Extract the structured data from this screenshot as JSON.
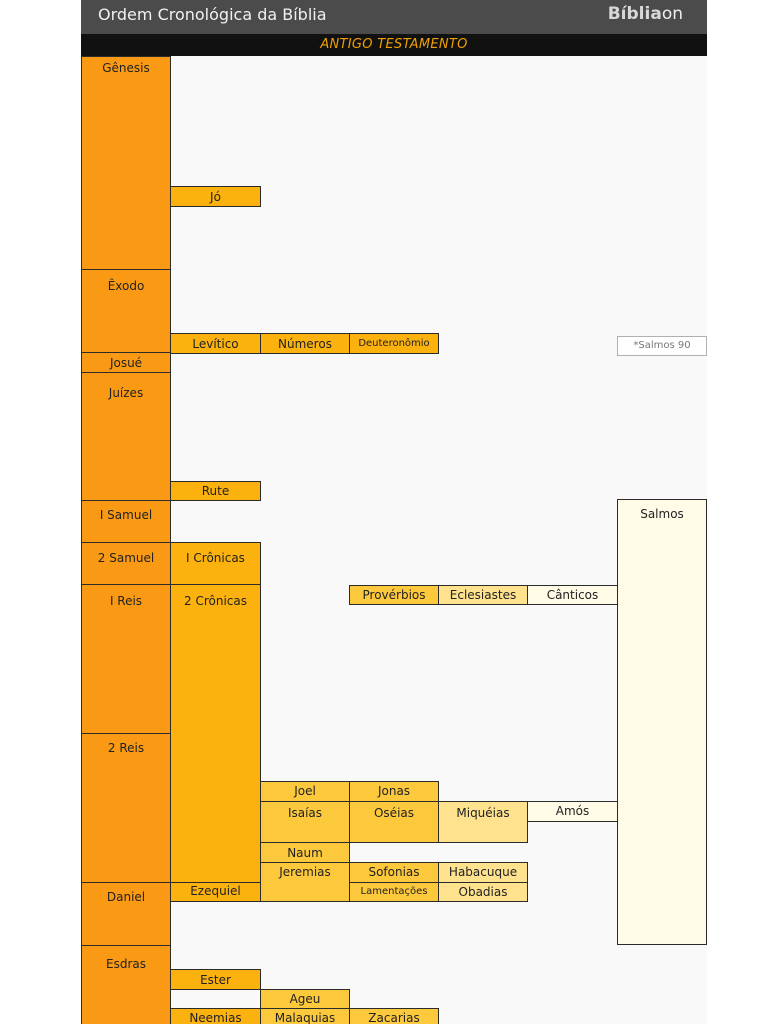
{
  "header": {
    "title": "Ordem Cronológica da Bíblia",
    "brand_strong": "Bíblia",
    "brand_light": "on"
  },
  "banner": {
    "label": "ANTIGO TESTAMENTO"
  },
  "colors": {
    "col1": "#fa9a14",
    "col2": "#fcb20e",
    "col3": "#fdc93c",
    "col4": "#fee28e",
    "col5": "#fffbe7"
  },
  "books": {
    "genesis": "Gênesis",
    "jo": "Jó",
    "exodo": "Êxodo",
    "levitico": "Levítico",
    "numeros": "Números",
    "deuteronomio": "Deuteronômio",
    "josue": "Josué",
    "juizes": "Juízes",
    "rute": "Rute",
    "samuel1": "I Samuel",
    "samuel2": "2 Samuel",
    "cronicas1": "I Crônicas",
    "reis1": "I Reis",
    "cronicas2": "2 Crônicas",
    "proverbios": "Provérbios",
    "eclesiastes": "Eclesiastes",
    "canticos": "Cânticos",
    "salmos": "Salmos",
    "reis2": "2 Reis",
    "joel": "Joel",
    "jonas": "Jonas",
    "isaias": "Isaías",
    "oseias": "Oséias",
    "miqueias": "Miquéias",
    "amos": "Amós",
    "naum": "Naum",
    "jeremias": "Jeremias",
    "sofonias": "Sofonias",
    "habacuque": "Habacuque",
    "lamentacoes": "Lamentações",
    "obadias": "Obadias",
    "daniel": "Daniel",
    "ezequiel": "Ezequiel",
    "esdras": "Esdras",
    "ester": "Ester",
    "ageu": "Ageu",
    "neemias": "Neemias",
    "malaquias": "Malaquias",
    "zacarias": "Zacarias"
  },
  "notes": {
    "salmos90": "*Salmos 90"
  }
}
